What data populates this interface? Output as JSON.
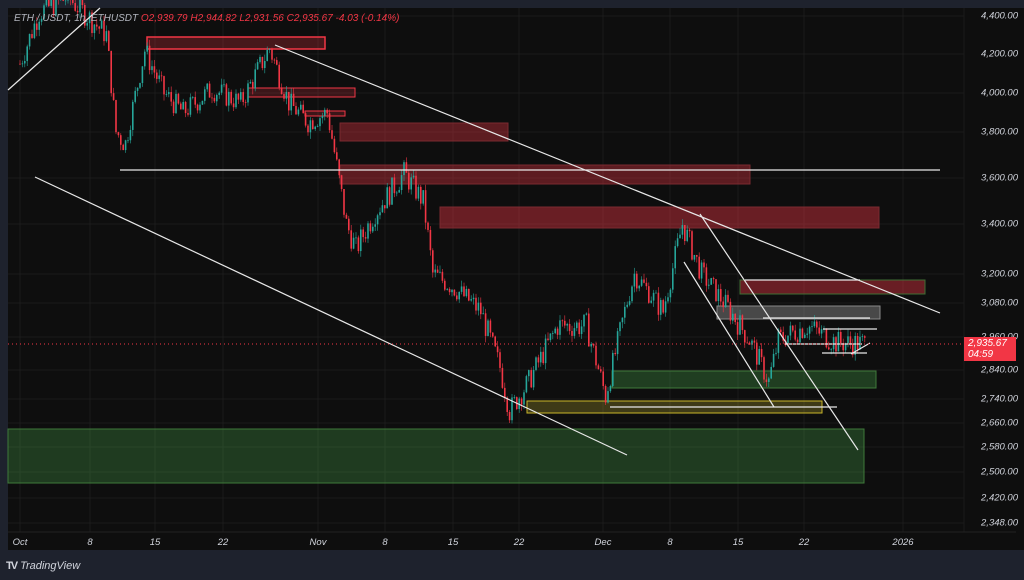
{
  "header": {
    "symbol": "ETH / USDT, 1h, ETHUSDT",
    "open": "O2,939.79",
    "high": "H2,944.82",
    "low": "L2,931.56",
    "close": "C2,935.67",
    "change": "-4.03 (-0.14%)"
  },
  "price_tag": {
    "price": "2,935.67",
    "countdown": "04:59",
    "color": "#f23645"
  },
  "brand": {
    "name": "TradingView"
  },
  "colors": {
    "up": "#26a69a",
    "down": "#f23645",
    "background": "#0e0e0e",
    "supply_zone": "#f23645",
    "demand_zone": "#4caf50",
    "range_zone": "#ffeb3b"
  },
  "chart_data": {
    "type": "candlestick",
    "title": "ETH / USDT, 1h",
    "y_scale": "log",
    "grid": true,
    "y_ticks": [
      "4,400.00",
      "4,200.00",
      "4,000.00",
      "3,800.00",
      "3,600.00",
      "3,400.00",
      "3,200.00",
      "3,080.00",
      "2,960.00",
      "2,840.00",
      "2,740.00",
      "2,660.00",
      "2,580.00",
      "2,500.00",
      "2,420.00",
      "2,348.00"
    ],
    "x_ticks": [
      "Oct",
      "8",
      "15",
      "22",
      "Nov",
      "8",
      "15",
      "22",
      "Dec",
      "8",
      "15",
      "22",
      "2026"
    ],
    "price_path": [
      [
        "2025-10-01",
        4150
      ],
      [
        "2025-10-03",
        4420
      ],
      [
        "2025-10-06",
        4500
      ],
      [
        "2025-10-10",
        4300
      ],
      [
        "2025-10-11",
        3800
      ],
      [
        "2025-10-12",
        3750
      ],
      [
        "2025-10-14",
        4220
      ],
      [
        "2025-10-16",
        4000
      ],
      [
        "2025-10-18",
        3900
      ],
      [
        "2025-10-21",
        4020
      ],
      [
        "2025-10-24",
        3950
      ],
      [
        "2025-10-27",
        4230
      ],
      [
        "2025-10-29",
        3950
      ],
      [
        "2025-10-31",
        3850
      ],
      [
        "2025-11-02",
        3900
      ],
      [
        "2025-11-04",
        3400
      ],
      [
        "2025-11-05",
        3300
      ],
      [
        "2025-11-07",
        3450
      ],
      [
        "2025-11-10",
        3620
      ],
      [
        "2025-11-12",
        3500
      ],
      [
        "2025-11-13",
        3200
      ],
      [
        "2025-11-15",
        3150
      ],
      [
        "2025-11-18",
        3050
      ],
      [
        "2025-11-20",
        2850
      ],
      [
        "2025-11-21",
        2700
      ],
      [
        "2025-11-23",
        2800
      ],
      [
        "2025-11-26",
        3000
      ],
      [
        "2025-11-29",
        3000
      ],
      [
        "2025-12-01",
        2750
      ],
      [
        "2025-12-03",
        3050
      ],
      [
        "2025-12-04",
        3200
      ],
      [
        "2025-12-07",
        3050
      ],
      [
        "2025-12-09",
        3400
      ],
      [
        "2025-12-11",
        3200
      ],
      [
        "2025-12-13",
        3100
      ],
      [
        "2025-12-16",
        2950
      ],
      [
        "2025-12-18",
        2800
      ],
      [
        "2025-12-19",
        2950
      ],
      [
        "2025-12-22",
        3000
      ],
      [
        "2025-12-25",
        2940
      ],
      [
        "2025-12-28",
        2935.67
      ]
    ],
    "last_price": 2935.67
  }
}
